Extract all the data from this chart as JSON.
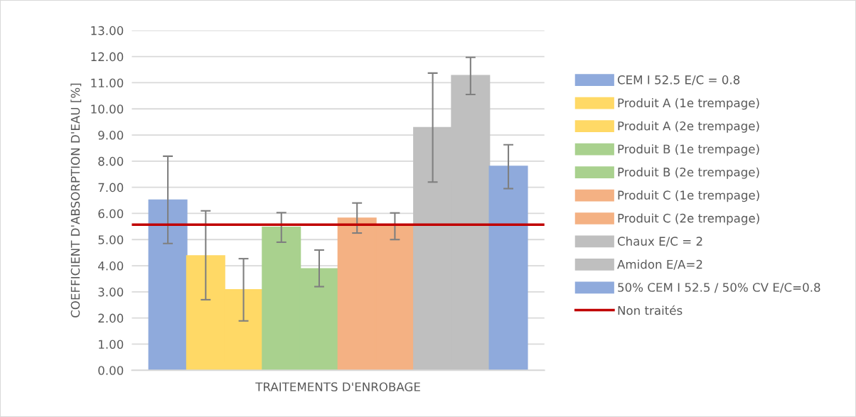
{
  "chart_data": {
    "type": "bar",
    "xlabel": "TRAITEMENTS D'ENROBAGE",
    "ylabel": "COEFFICIENT D'ABSORPTION D'EAU [%]",
    "categories": [
      null
    ],
    "ylim": [
      0,
      13
    ],
    "yticks": [
      {
        "value": 0,
        "label": "0.00"
      },
      {
        "value": 1,
        "label": "1.00"
      },
      {
        "value": 2,
        "label": "2.00"
      },
      {
        "value": 3,
        "label": "3.00"
      },
      {
        "value": 4,
        "label": "4.00"
      },
      {
        "value": 5,
        "label": "5.00"
      },
      {
        "value": 6,
        "label": "6.00"
      },
      {
        "value": 7,
        "label": "7.00"
      },
      {
        "value": 8,
        "label": "8.00"
      },
      {
        "value": 9,
        "label": "9.00"
      },
      {
        "value": 10,
        "label": "10.00"
      },
      {
        "value": 11,
        "label": "11.00"
      },
      {
        "value": 12,
        "label": "12.00"
      },
      {
        "value": 13,
        "label": "13.00"
      }
    ],
    "grid": "y",
    "legend": "right",
    "series": [
      {
        "name": "CEM I 52.5 E/C = 0.8",
        "color": "#8faadc",
        "values": [
          6.51
        ],
        "errors": [
          [
            4.85,
            8.19
          ]
        ]
      },
      {
        "name": "Produit A (1e trempage)",
        "color": "#ffd966",
        "values": [
          4.38
        ],
        "errors": [
          [
            2.7,
            6.1
          ]
        ]
      },
      {
        "name": "Produit A (2e trempage)",
        "color": "#ffd966",
        "values": [
          3.08
        ],
        "errors": [
          [
            1.89,
            4.27
          ]
        ]
      },
      {
        "name": "Produit B (1e trempage)",
        "color": "#a9d18e",
        "values": [
          5.47
        ],
        "errors": [
          [
            4.9,
            6.03
          ]
        ]
      },
      {
        "name": "Produit B (2e trempage)",
        "color": "#a9d18e",
        "values": [
          3.88
        ],
        "errors": [
          [
            3.2,
            4.6
          ]
        ]
      },
      {
        "name": "Produit C (1e trempage)",
        "color": "#f4b183",
        "values": [
          5.82
        ],
        "errors": [
          [
            5.25,
            6.4
          ]
        ]
      },
      {
        "name": "Produit C (2e trempage)",
        "color": "#f4b183",
        "values": [
          5.55
        ],
        "errors": [
          [
            5.0,
            6.02
          ]
        ]
      },
      {
        "name": "Chaux E/C = 2",
        "color": "#bfbfbf",
        "values": [
          9.28
        ],
        "errors": [
          [
            7.2,
            11.37
          ]
        ]
      },
      {
        "name": "Amidon E/A=2",
        "color": "#bfbfbf",
        "values": [
          11.27
        ],
        "errors": [
          [
            10.55,
            11.97
          ]
        ]
      },
      {
        "name": "50% CEM I 52.5 / 50% CV E/C=0.8",
        "color": "#8faadc",
        "values": [
          7.8
        ],
        "errors": [
          [
            6.95,
            8.63
          ]
        ]
      }
    ],
    "ref_lines": [
      {
        "axis": "y",
        "value": 5.57,
        "label": "Non traités",
        "color": "#c00000"
      }
    ]
  }
}
